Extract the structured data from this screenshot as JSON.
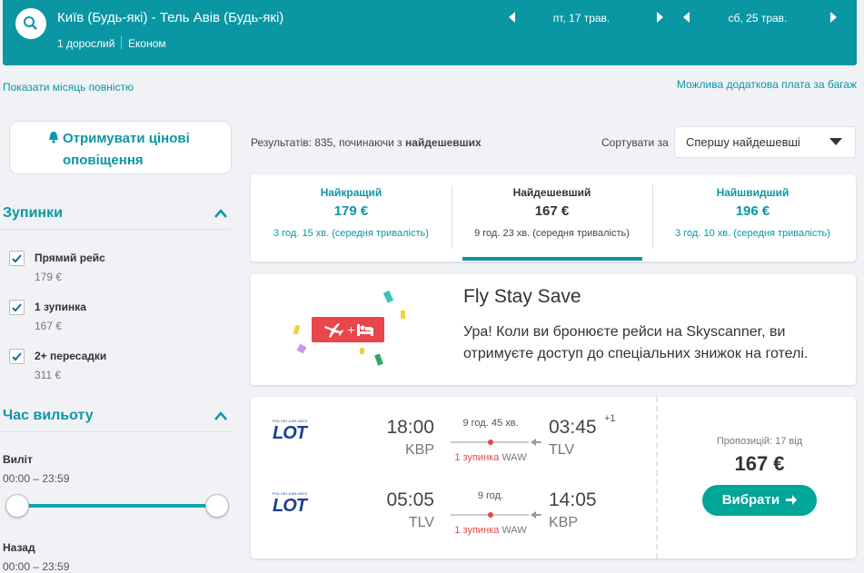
{
  "header": {
    "route": "Київ (Будь-які) - Тель Авів (Будь-які)",
    "passengers": "1 дорослий",
    "cabin": "Економ",
    "depart_date": "пт, 17 трав.",
    "return_date": "сб, 25 трав."
  },
  "links": {
    "show_month": "Показати місяць повністю",
    "baggage": "Можлива додаткова плата за багаж"
  },
  "sidebar": {
    "alert": "Отримувати цінові оповіщення",
    "stops": {
      "title": "Зупинки",
      "options": [
        {
          "label": "Прямий рейс",
          "price": "179 €"
        },
        {
          "label": "1 зупинка",
          "price": "167 €"
        },
        {
          "label": "2+ пересадки",
          "price": "311 €"
        }
      ]
    },
    "departure_time": {
      "title": "Час вильоту",
      "outbound": {
        "label": "Виліт",
        "range": "00:00 – 23:59"
      },
      "inbound": {
        "label": "Назад",
        "range": "00:00 – 23:59"
      }
    }
  },
  "results": {
    "summary": "Результатів: 835, починаючи з",
    "order": "найдешевших",
    "sort_label": "Сортувати за",
    "sort_value": "Спершу найдешевші"
  },
  "tabs": [
    {
      "label": "Найкращий",
      "price": "179 €",
      "duration": "3 год. 15 хв. (середня тривалість)"
    },
    {
      "label": "Найдешевший",
      "price": "167 €",
      "duration": "9 год. 23 хв. (середня тривалість)"
    },
    {
      "label": "Найшвидший",
      "price": "196 €",
      "duration": "3 год. 10 хв. (середня тривалість)"
    }
  ],
  "promo": {
    "title": "Fly Stay Save",
    "text": "Ура! Коли ви бронюєте рейси на Skyscanner, ви отримуєте доступ до спеціальних знижок на готелі."
  },
  "flight": {
    "legs": [
      {
        "airline": "LOT",
        "airline_sub": "POLISH AIRLINES",
        "depart_time": "18:00",
        "depart_airport": "KBP",
        "duration": "9 год. 45 хв.",
        "stops": "1 зупинка",
        "via": "WAW",
        "arrive_time": "03:45",
        "day_offset": "+1",
        "arrive_airport": "TLV"
      },
      {
        "airline": "LOT",
        "airline_sub": "POLISH AIRLINES",
        "depart_time": "05:05",
        "depart_airport": "TLV",
        "duration": "9 год.",
        "stops": "1 зупинка",
        "via": "WAW",
        "arrive_time": "14:05",
        "day_offset": null,
        "arrive_airport": "KBP"
      }
    ],
    "offers": "Пропозицій: 17 від",
    "price": "167 €",
    "select": "Вибрати"
  }
}
